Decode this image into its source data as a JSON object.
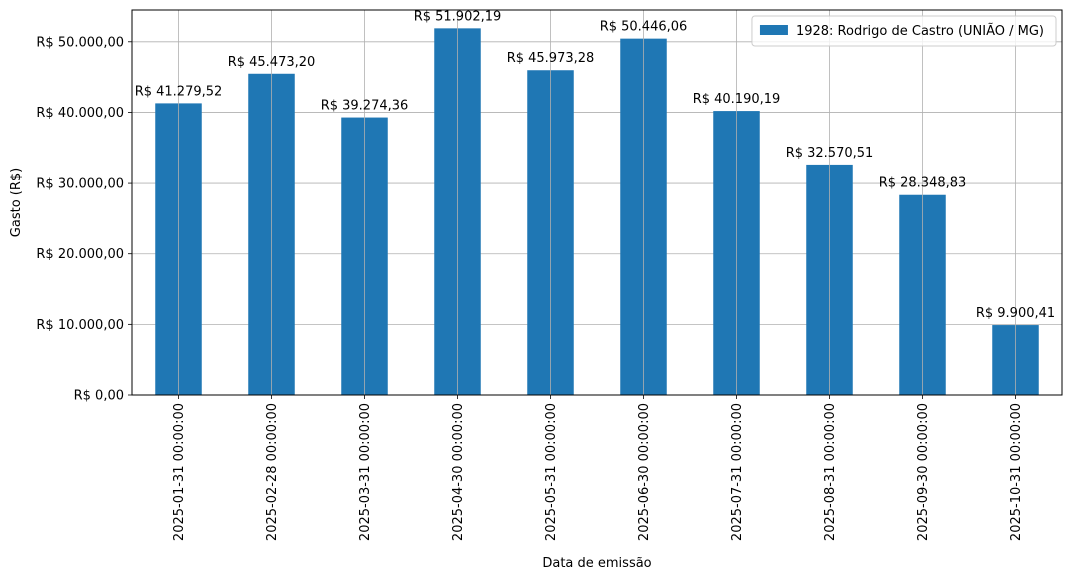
{
  "chart_data": {
    "type": "bar",
    "xlabel": "Data de emissão",
    "ylabel": "Gasto (R$)",
    "ylim": [
      0,
      54500
    ],
    "grid": true,
    "legend_position": "top-right",
    "bar_color": "#1f77b4",
    "categories": [
      "2025-01-31 00:00:00",
      "2025-02-28 00:00:00",
      "2025-03-31 00:00:00",
      "2025-04-30 00:00:00",
      "2025-05-31 00:00:00",
      "2025-06-30 00:00:00",
      "2025-07-31 00:00:00",
      "2025-08-31 00:00:00",
      "2025-09-30 00:00:00",
      "2025-10-31 00:00:00"
    ],
    "series": [
      {
        "name": "1928: Rodrigo de Castro (UNIÃO / MG)",
        "values": [
          41279.52,
          45473.2,
          39274.36,
          51902.19,
          45973.28,
          50446.06,
          40190.19,
          32570.51,
          28348.83,
          9900.41
        ],
        "data_labels": [
          "R$ 41.279,52",
          "R$ 45.473,20",
          "R$ 39.274,36",
          "R$ 51.902,19",
          "R$ 45.973,28",
          "R$ 50.446,06",
          "R$ 40.190,19",
          "R$ 32.570,51",
          "R$ 28.348,83",
          "R$ 9.900,41"
        ]
      }
    ],
    "yticks": [
      0,
      10000,
      20000,
      30000,
      40000,
      50000
    ],
    "ytick_labels": [
      "R$ 0,00",
      "R$ 10.000,00",
      "R$ 20.000,00",
      "R$ 30.000,00",
      "R$ 40.000,00",
      "R$ 50.000,00"
    ]
  }
}
